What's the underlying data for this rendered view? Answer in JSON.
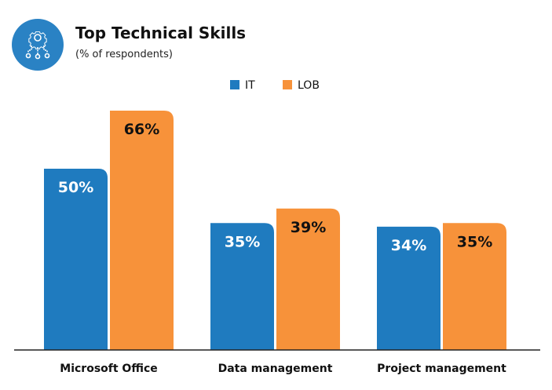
{
  "chart_data": {
    "type": "bar",
    "title": "Top Technical Skills",
    "subtitle": "(% of respondents)",
    "categories": [
      "Microsoft Office",
      "Data management",
      "Project management"
    ],
    "series": [
      {
        "name": "IT",
        "values": [
          50,
          35,
          34
        ],
        "color": "#1f7bbf",
        "label_color": "#ffffff"
      },
      {
        "name": "LOB",
        "values": [
          66,
          39,
          35
        ],
        "color": "#f7923a",
        "label_color": "#111111"
      }
    ],
    "value_suffix": "%",
    "ylim": [
      0,
      66
    ],
    "grid": false,
    "legend": "top-center",
    "icon": "gear-circuit-icon",
    "icon_color": "#2a82c4"
  }
}
